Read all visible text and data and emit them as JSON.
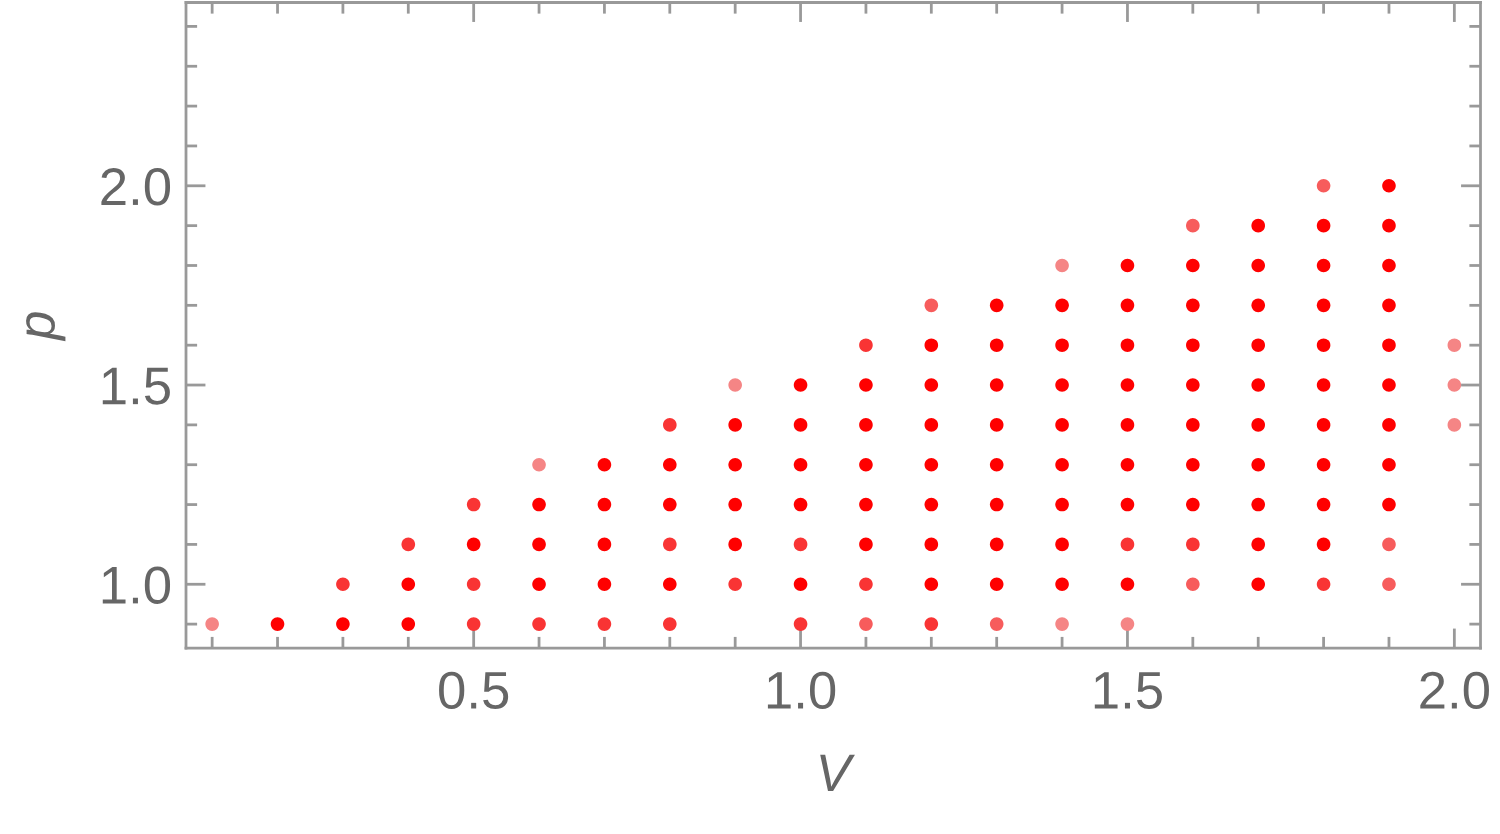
{
  "chart_data": {
    "type": "scatter",
    "xlabel": "V",
    "ylabel": "p",
    "marker": "circle",
    "xlim": [
      0.06,
      2.04
    ],
    "ylim": [
      0.84,
      2.46
    ],
    "xticks": [
      {
        "value": 0.1,
        "label": null
      },
      {
        "value": 0.2,
        "label": null
      },
      {
        "value": 0.3,
        "label": null
      },
      {
        "value": 0.4,
        "label": null
      },
      0.5,
      {
        "value": 0.6,
        "label": null
      },
      {
        "value": 0.7,
        "label": null
      },
      {
        "value": 0.8,
        "label": null
      },
      {
        "value": 0.9,
        "label": null
      },
      {
        "value": 1,
        "label": "1.0"
      },
      {
        "value": 1.1,
        "label": null
      },
      {
        "value": 1.2,
        "label": null
      },
      {
        "value": 1.3,
        "label": null
      },
      {
        "value": 1.4,
        "label": null
      },
      1.5,
      {
        "value": 1.6,
        "label": null
      },
      {
        "value": 1.7,
        "label": null
      },
      {
        "value": 1.8,
        "label": null
      },
      {
        "value": 1.9,
        "label": null
      },
      {
        "value": 2,
        "label": "2.0"
      }
    ],
    "yticks": [
      {
        "value": 0.9,
        "label": null
      },
      {
        "value": 1,
        "label": "1.0"
      },
      {
        "value": 1.1,
        "label": null
      },
      {
        "value": 1.2,
        "label": null
      },
      {
        "value": 1.3,
        "label": null
      },
      {
        "value": 1.4,
        "label": null
      },
      1.5,
      {
        "value": 1.6,
        "label": null
      },
      {
        "value": 1.7,
        "label": null
      },
      {
        "value": 1.8,
        "label": null
      },
      {
        "value": 1.9,
        "label": null
      },
      {
        "value": 2,
        "label": "2.0"
      },
      {
        "value": 2.1,
        "label": null
      },
      {
        "value": 2.2,
        "label": null
      },
      {
        "value": 2.3,
        "label": null
      },
      {
        "value": 2.4,
        "label": null
      }
    ],
    "series": [
      {
        "color": "#ff0000",
        "x": [
          0.2,
          0.3,
          0.4,
          0.4,
          0.6,
          0.7,
          0.8,
          1.0,
          1.2,
          1.3,
          1.4,
          1.5,
          1.7,
          0.5,
          0.6,
          0.7,
          0.9,
          1.1,
          1.2,
          1.3,
          1.4,
          1.7,
          1.8,
          0.6,
          0.7,
          0.8,
          0.9,
          1.0,
          1.1,
          1.2,
          1.3,
          1.4,
          1.5,
          1.6,
          1.7,
          1.8,
          1.9,
          0.7,
          0.8,
          0.9,
          1.0,
          1.1,
          1.2,
          1.3,
          1.4,
          1.5,
          1.6,
          1.7,
          1.8,
          1.9,
          0.9,
          1.0,
          1.1,
          1.2,
          1.3,
          1.4,
          1.5,
          1.6,
          1.7,
          1.8,
          1.9,
          1.0,
          1.1,
          1.2,
          1.3,
          1.4,
          1.5,
          1.6,
          1.7,
          1.8,
          1.9,
          1.2,
          1.3,
          1.4,
          1.5,
          1.6,
          1.7,
          1.8,
          1.9,
          1.3,
          1.4,
          1.5,
          1.6,
          1.7,
          1.8,
          1.9,
          1.5,
          1.6,
          1.7,
          1.8,
          1.9,
          1.7,
          1.8,
          1.9,
          1.9
        ],
        "values": [
          0.9,
          0.9,
          0.9,
          1.0,
          1.0,
          1.0,
          1.0,
          1.0,
          1.0,
          1.0,
          1.0,
          1.0,
          1.0,
          1.1,
          1.1,
          1.1,
          1.1,
          1.1,
          1.1,
          1.1,
          1.1,
          1.1,
          1.1,
          1.2,
          1.2,
          1.2,
          1.2,
          1.2,
          1.2,
          1.2,
          1.2,
          1.2,
          1.2,
          1.2,
          1.2,
          1.2,
          1.2,
          1.3,
          1.3,
          1.3,
          1.3,
          1.3,
          1.3,
          1.3,
          1.3,
          1.3,
          1.3,
          1.3,
          1.3,
          1.3,
          1.4,
          1.4,
          1.4,
          1.4,
          1.4,
          1.4,
          1.4,
          1.4,
          1.4,
          1.4,
          1.4,
          1.5,
          1.5,
          1.5,
          1.5,
          1.5,
          1.5,
          1.5,
          1.5,
          1.5,
          1.5,
          1.6,
          1.6,
          1.6,
          1.6,
          1.6,
          1.6,
          1.6,
          1.6,
          1.7,
          1.7,
          1.7,
          1.7,
          1.7,
          1.7,
          1.7,
          1.8,
          1.8,
          1.8,
          1.8,
          1.8,
          1.9,
          1.9,
          1.9,
          2.0
        ]
      },
      {
        "color": "#f93434",
        "x": [
          0.5,
          0.6,
          0.7,
          0.8,
          1.0,
          1.2,
          0.3,
          0.5,
          0.9,
          1.1,
          1.8,
          0.4,
          0.8,
          1.0,
          1.5,
          1.6,
          0.5,
          0.8,
          1.1
        ],
        "values": [
          0.9,
          0.9,
          0.9,
          0.9,
          0.9,
          0.9,
          1.0,
          1.0,
          1.0,
          1.0,
          1.0,
          1.1,
          1.1,
          1.1,
          1.1,
          1.1,
          1.2,
          1.4,
          1.6
        ]
      },
      {
        "color": "#f75c5c",
        "x": [
          1.1,
          1.3,
          1.6,
          1.9,
          1.9,
          1.2,
          1.6,
          1.8
        ],
        "values": [
          0.9,
          0.9,
          1.0,
          1.0,
          1.1,
          1.7,
          1.9,
          2.0
        ]
      },
      {
        "color": "#f58585",
        "x": [
          0.1,
          1.4,
          1.5,
          0.6,
          2.0,
          0.9,
          2.0,
          2.0,
          1.4
        ],
        "values": [
          0.9,
          0.9,
          0.9,
          1.3,
          1.4,
          1.5,
          1.5,
          1.6,
          1.8
        ]
      }
    ]
  }
}
